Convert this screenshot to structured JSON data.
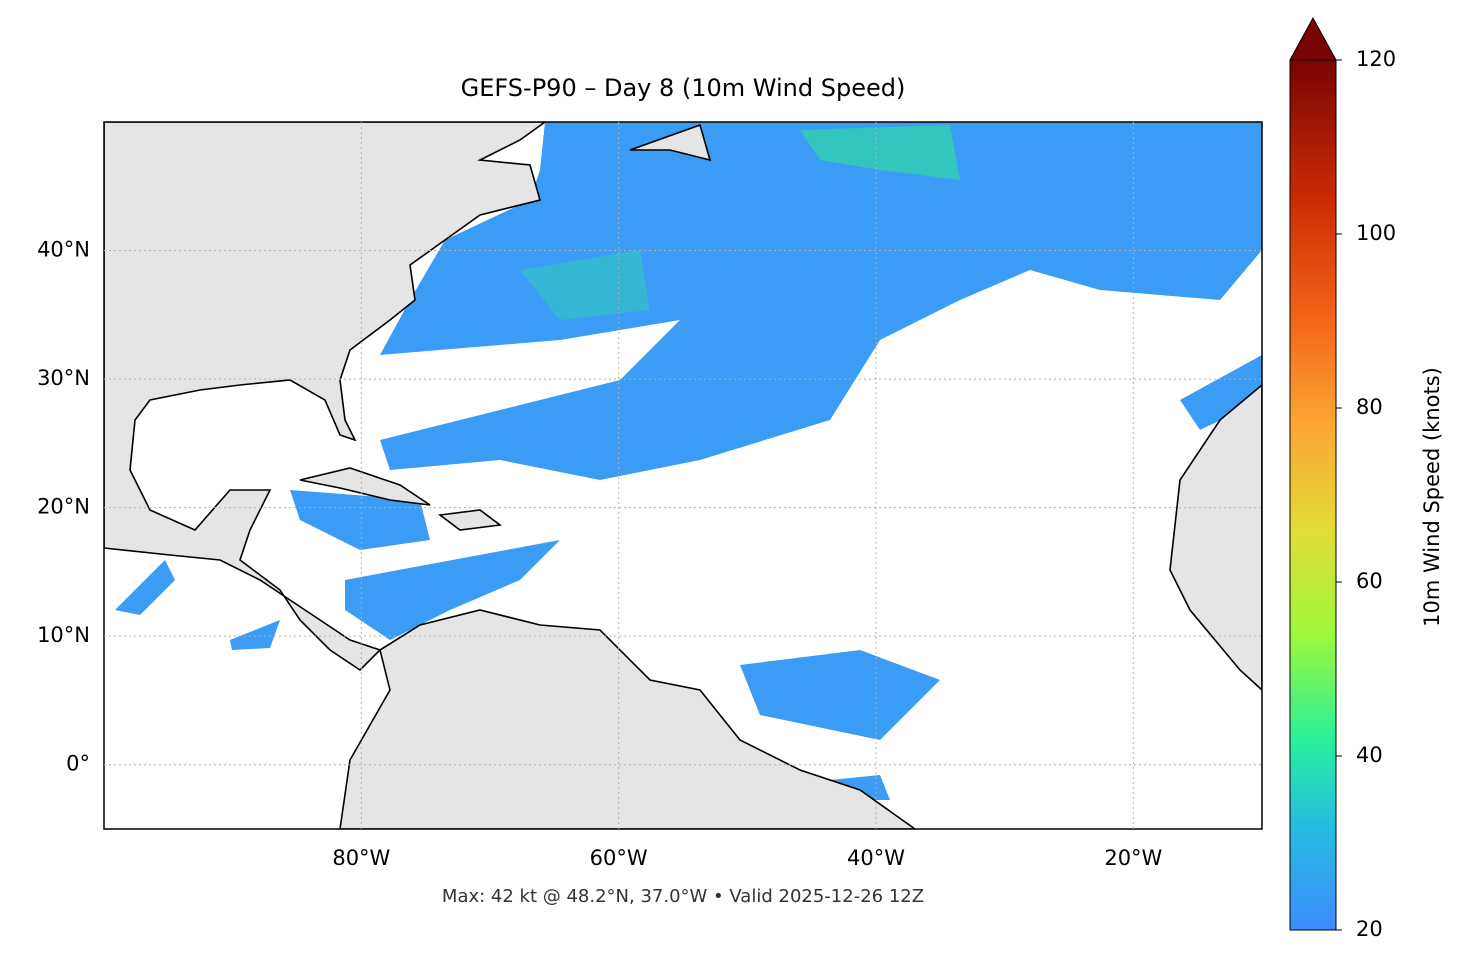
{
  "chart_data": {
    "type": "map",
    "title": "GEFS-P90 – Day 8 (10m Wind Speed)",
    "footer": "Max: 42 kt @ 48.2°N, 37.0°W • Valid 2025-12-26 12Z",
    "xlim": [
      -100,
      -10
    ],
    "xticks": [
      {
        "value": -80,
        "label": "80°W"
      },
      {
        "value": -60,
        "label": "60°W"
      },
      {
        "value": -40,
        "label": "40°W"
      },
      {
        "value": -20,
        "label": "20°W"
      }
    ],
    "ylim": [
      -5,
      50
    ],
    "yticks": [
      {
        "value": 0,
        "label": "0°"
      },
      {
        "value": 10,
        "label": "10°N"
      },
      {
        "value": 20,
        "label": "20°N"
      },
      {
        "value": 30,
        "label": "30°N"
      },
      {
        "value": 40,
        "label": "40°N"
      }
    ],
    "grid": true,
    "colorbar": {
      "label": "10m Wind Speed (knots)",
      "clim": [
        20,
        120
      ],
      "ticks": [
        20,
        40,
        60,
        80,
        100,
        120
      ]
    }
  }
}
